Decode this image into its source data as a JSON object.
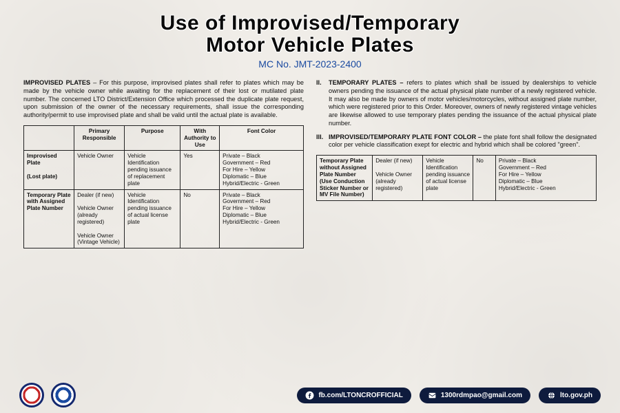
{
  "header": {
    "title_line1": "Use of Improvised/Temporary",
    "title_line2": "Motor Vehicle Plates",
    "subtitle": "MC No. JMT-2023-2400"
  },
  "left": {
    "lead": "IMPROVISED PLATES",
    "body": " – For this purpose, improvised plates shall refer to plates which may be made by the vehicle owner while awaiting for the replacement of their lost or mutilated plate number. The concerned LTO District/Extension Office which processed the duplicate plate request, upon submission of the owner of the necessary requirements, shall issue the corresponding authority/permit to use improvised plate and shall be valid until the actual plate is available.",
    "table": {
      "columns": [
        "",
        "Primary Responsible",
        "Purpose",
        "With Authority to Use",
        "Font Color"
      ],
      "rows": [
        [
          "Improvised Plate\n\n(Lost plate)",
          "Vehicle Owner",
          "Vehicle Identification pending issuance of replacement plate",
          "Yes",
          "Private – Black\nGovernment – Red\nFor Hire – Yellow\nDiplomatic – Blue\nHybrid/Electric - Green"
        ],
        [
          "Temporary Plate with Assigned Plate Number",
          "Dealer (if new)\n\nVehicle Owner (already registered)\n\nVehicle Owner (Vintage Vehicle)",
          "Vehicle Identification pending issuance of actual license plate",
          "No",
          "Private – Black\nGovernment – Red\nFor Hire – Yellow\nDiplomatic – Blue\nHybrid/Electric - Green"
        ]
      ]
    }
  },
  "right": {
    "ii_roman": "II.",
    "ii_lead": "TEMPORARY PLATES –",
    "ii_body": " refers to plates which shall be issued by dealerships to vehicle owners pending the issuance of the actual physical plate number of a newly registered vehicle. It may also be made by owners of motor vehicles/motorcycles, without assigned plate number, which were registered prior to this Order. Moreover, owners of newly registered vintage vehicles are likewise allowed to use temporary plates pending the issuance of the actual physical plate number.",
    "iii_roman": "III.",
    "iii_lead": "IMPROVISED/TEMPORARY PLATE FONT COLOR –",
    "iii_body": " the plate font shall follow the designated color per vehicle classification exept for electric and hybrid which shall be colored \"green\".",
    "table": {
      "row": [
        "Temporary Plate without Assigned Plate Number (Use Conduction Sticker Number or MV File Number)",
        "Dealer (if new)\n\nVehicle Owner (already registered)",
        "Vehicle Identification pending issuance of actual license plate",
        "No",
        "Private – Black\nGovernment – Red\nFor Hire – Yellow\nDiplomatic – Blue\nHybrid/Electric - Green"
      ]
    }
  },
  "footer": {
    "fb": "fb.com/LTONCROFFICIAL",
    "email": "1300rdmpao@gmail.com",
    "web": "lto.gov.ph"
  },
  "colors": {
    "title": "#0a0a0a",
    "subtitle": "#1a4aa0",
    "pill_bg": "#0e1b3d",
    "border": "#222222"
  }
}
